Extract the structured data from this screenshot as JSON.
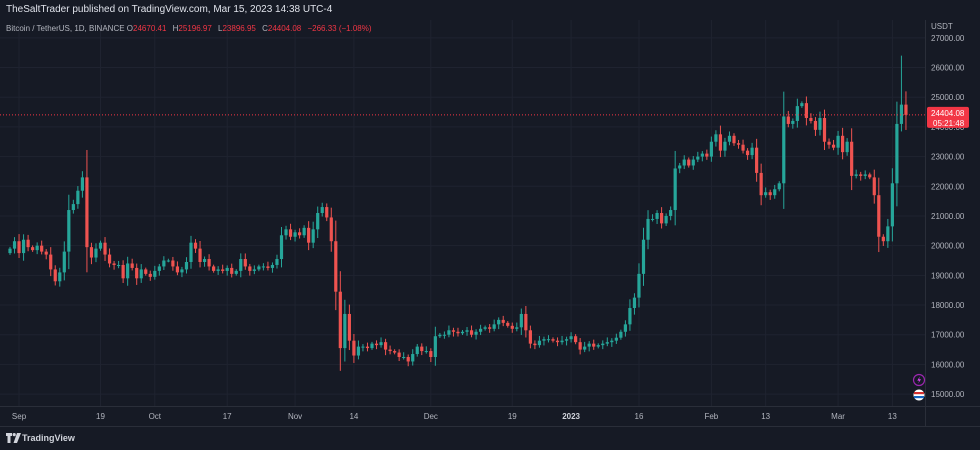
{
  "header": {
    "publisher_line": "TheSaltTrader published on TradingView.com, Mar 15, 2023 14:38 UTC-4"
  },
  "legend": {
    "symbol": "Bitcoin / TetherUS, 1D, BINANCE",
    "o_label": "O",
    "o_value": "24670.41",
    "h_label": "H",
    "h_value": "25196.97",
    "l_label": "L",
    "l_value": "23896.95",
    "c_label": "C",
    "c_value": "24404.08",
    "change": "−266.33 (−1.08%)"
  },
  "price_tag": {
    "price": "24404.08",
    "countdown": "05:21:48"
  },
  "footer": {
    "brand": "TradingView"
  },
  "colors": {
    "up": "#26a69a",
    "down": "#ef5350",
    "background": "#161a25",
    "price_tag": "#f23645"
  },
  "icons": {
    "lightning": "lightning-icon",
    "flag": "flag-icon",
    "logo": "tradingview-logo-icon"
  },
  "chart_data": {
    "type": "candlestick",
    "ylabel": "USDT",
    "ylim": [
      14600,
      27600
    ],
    "yticks": [
      15000,
      16000,
      17000,
      18000,
      19000,
      20000,
      21000,
      22000,
      23000,
      24000,
      25000,
      26000,
      27000
    ],
    "ytick_labels": [
      "15000.00",
      "16000.00",
      "17000.00",
      "18000.00",
      "19000.00",
      "20000.00",
      "21000.00",
      "22000.00",
      "23000.00",
      "24000.00",
      "25000.00",
      "26000.00",
      "27000.00"
    ],
    "xticks": [
      {
        "label": "Sep",
        "index": 2
      },
      {
        "label": "19",
        "index": 20
      },
      {
        "label": "Oct",
        "index": 32
      },
      {
        "label": "17",
        "index": 48
      },
      {
        "label": "Nov",
        "index": 63
      },
      {
        "label": "14",
        "index": 76
      },
      {
        "label": "Dec",
        "index": 93
      },
      {
        "label": "19",
        "index": 111
      },
      {
        "label": "2023",
        "index": 124
      },
      {
        "label": "16",
        "index": 139
      },
      {
        "label": "Feb",
        "index": 155
      },
      {
        "label": "13",
        "index": 167
      },
      {
        "label": "Mar",
        "index": 183
      },
      {
        "label": "13",
        "index": 195
      }
    ],
    "last_price": 24404.08,
    "closes": [
      19900,
      20150,
      19750,
      20200,
      19950,
      19850,
      20000,
      19800,
      19700,
      19200,
      18800,
      19100,
      19800,
      21200,
      21400,
      21850,
      22300,
      19950,
      19600,
      19900,
      20100,
      19700,
      19400,
      19350,
      19350,
      18900,
      19400,
      19250,
      18900,
      19200,
      19050,
      18950,
      19150,
      19300,
      19500,
      19500,
      19300,
      19100,
      19200,
      19450,
      20100,
      19900,
      19450,
      19550,
      19300,
      19150,
      19200,
      19150,
      19250,
      19050,
      19150,
      19550,
      19300,
      19150,
      19200,
      19300,
      19300,
      19250,
      19350,
      19550,
      20350,
      20550,
      20300,
      20450,
      20350,
      20600,
      20100,
      20550,
      21100,
      21300,
      20950,
      20150,
      18450,
      16550,
      17700,
      16800,
      16300,
      16600,
      16600,
      16550,
      16700,
      16650,
      16750,
      16500,
      16450,
      16400,
      16250,
      16250,
      16100,
      16350,
      16600,
      16450,
      16450,
      16250,
      16950,
      17000,
      17000,
      17150,
      17100,
      17050,
      17100,
      17150,
      17000,
      17100,
      17200,
      17250,
      17200,
      17350,
      17500,
      17400,
      17300,
      17200,
      17250,
      17700,
      17150,
      16700,
      16650,
      16800,
      16850,
      16850,
      16800,
      16750,
      16800,
      16850,
      16950,
      16750,
      16500,
      16600,
      16700,
      16600,
      16650,
      16700,
      16750,
      16800,
      16900,
      17100,
      17350,
      17900,
      18250,
      19050,
      20200,
      20900,
      20900,
      21100,
      20750,
      21000,
      21200,
      22600,
      22700,
      22900,
      22700,
      22900,
      23000,
      23100,
      23000,
      23500,
      23750,
      23200,
      23500,
      23700,
      23450,
      23400,
      23200,
      23050,
      23300,
      22450,
      21700,
      21800,
      21700,
      21900,
      22100,
      24350,
      24100,
      24200,
      24700,
      24800,
      24300,
      24200,
      23900,
      24300,
      23500,
      23400,
      23300,
      23700,
      23150,
      23500,
      22350,
      22400,
      22350,
      22400,
      22300,
      21700,
      20300,
      20150,
      20650,
      22100,
      24100,
      24750,
      24404
    ]
  }
}
